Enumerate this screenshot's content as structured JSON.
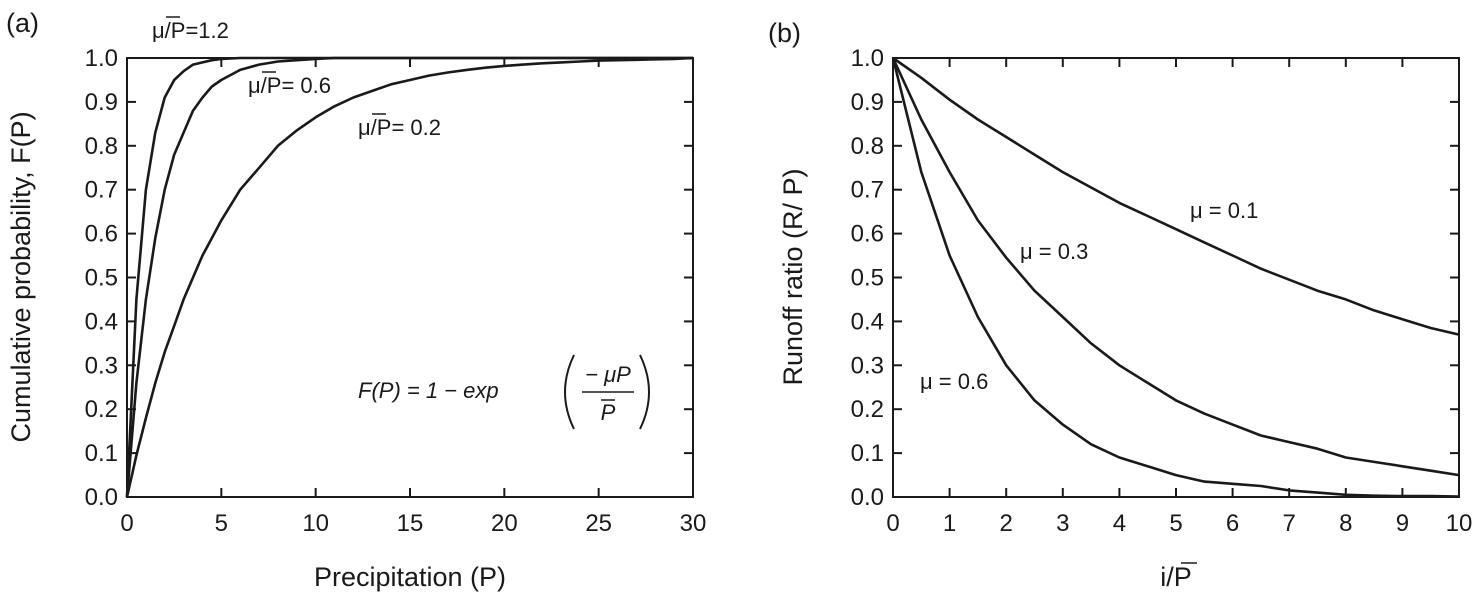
{
  "colors": {
    "line": "#1a1a1a",
    "background": "#ffffff"
  },
  "chart_data": [
    {
      "id": "a",
      "type": "line",
      "panel_label": "(a)",
      "xlabel": "Precipitation (P)",
      "ylabel": "Cumulative probability, F(P)",
      "xlim": [
        0,
        30
      ],
      "ylim": [
        0,
        1
      ],
      "xticks": [
        0,
        5,
        10,
        15,
        20,
        25,
        30
      ],
      "yticks": [
        0.0,
        0.1,
        0.2,
        0.3,
        0.4,
        0.5,
        0.6,
        0.7,
        0.8,
        0.9,
        1.0
      ],
      "x": [
        0,
        0.5,
        1,
        1.5,
        2,
        2.5,
        3,
        3.5,
        4,
        4.5,
        5,
        6,
        7,
        8,
        9,
        10,
        11,
        12,
        13,
        14,
        15,
        16,
        17,
        18,
        19,
        20,
        21,
        22,
        23,
        24,
        25,
        26,
        27,
        28,
        29,
        30
      ],
      "series": [
        {
          "annotation": "μ/P=1.2",
          "values": [
            0,
            0.45,
            0.7,
            0.83,
            0.91,
            0.95,
            0.97,
            0.985,
            0.99,
            0.995,
            0.998,
            1,
            1,
            1,
            1,
            1,
            1,
            1,
            1,
            1,
            1,
            1,
            1,
            1,
            1,
            1,
            1,
            1,
            1,
            1,
            1,
            1,
            1,
            1,
            1,
            1
          ]
        },
        {
          "annotation": "μ/P= 0.6",
          "values": [
            0,
            0.26,
            0.45,
            0.59,
            0.7,
            0.78,
            0.83,
            0.88,
            0.91,
            0.935,
            0.95,
            0.973,
            0.985,
            0.992,
            0.995,
            0.998,
            1,
            1,
            1,
            1,
            1,
            1,
            1,
            1,
            1,
            1,
            1,
            1,
            1,
            1,
            1,
            1,
            1,
            1,
            1,
            1
          ]
        },
        {
          "annotation": "μ/P= 0.2",
          "values": [
            0,
            0.095,
            0.18,
            0.26,
            0.33,
            0.39,
            0.45,
            0.5,
            0.55,
            0.59,
            0.63,
            0.7,
            0.75,
            0.8,
            0.835,
            0.865,
            0.89,
            0.91,
            0.925,
            0.94,
            0.95,
            0.96,
            0.967,
            0.973,
            0.978,
            0.982,
            0.985,
            0.988,
            0.99,
            0.992,
            0.994,
            0.995,
            0.996,
            0.997,
            0.998,
            1
          ]
        }
      ],
      "formula": {
        "lhs": "F(P) = 1 − exp",
        "numerator": "− μP",
        "denominator": "P"
      }
    },
    {
      "id": "b",
      "type": "line",
      "panel_label": "(b)",
      "xlabel": "i/P",
      "ylabel": "Runoff ratio (R/ P)",
      "xlim": [
        0,
        10
      ],
      "ylim": [
        0,
        1
      ],
      "xticks": [
        0,
        1,
        2,
        3,
        4,
        5,
        6,
        7,
        8,
        9,
        10
      ],
      "yticks": [
        0.0,
        0.1,
        0.2,
        0.3,
        0.4,
        0.5,
        0.6,
        0.7,
        0.8,
        0.9,
        1.0
      ],
      "x": [
        0,
        0.5,
        1,
        1.5,
        2,
        2.5,
        3,
        3.5,
        4,
        4.5,
        5,
        5.5,
        6,
        6.5,
        7,
        7.5,
        8,
        8.5,
        9,
        9.5,
        10
      ],
      "series": [
        {
          "annotation": "μ = 0.1",
          "values": [
            1,
            0.955,
            0.905,
            0.86,
            0.82,
            0.78,
            0.74,
            0.705,
            0.67,
            0.64,
            0.61,
            0.58,
            0.55,
            0.52,
            0.495,
            0.47,
            0.45,
            0.425,
            0.405,
            0.385,
            0.37
          ]
        },
        {
          "annotation": "μ = 0.3",
          "values": [
            1,
            0.86,
            0.74,
            0.63,
            0.545,
            0.47,
            0.41,
            0.35,
            0.3,
            0.26,
            0.22,
            0.19,
            0.165,
            0.14,
            0.125,
            0.11,
            0.09,
            0.08,
            0.07,
            0.06,
            0.05
          ]
        },
        {
          "annotation": "μ = 0.6",
          "values": [
            1,
            0.74,
            0.55,
            0.41,
            0.3,
            0.22,
            0.165,
            0.12,
            0.09,
            0.07,
            0.05,
            0.035,
            0.03,
            0.025,
            0.015,
            0.01,
            0.005,
            0.003,
            0.002,
            0.002,
            0.001
          ]
        }
      ]
    }
  ]
}
